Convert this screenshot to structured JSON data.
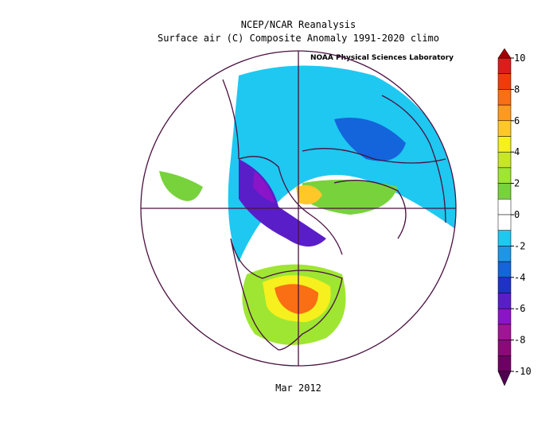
{
  "header": {
    "title": "NCEP/NCAR Reanalysis",
    "subtitle": "Surface air (C) Composite Anomaly 1991-2020 climo",
    "credit": "NOAA Physical Sciences Laboratory"
  },
  "footer": {
    "date": "Mar 2012"
  },
  "colorbar": {
    "lim": [
      -10,
      10
    ],
    "ticks": [
      10,
      8,
      6,
      4,
      2,
      0,
      -2,
      -4,
      -6,
      -8,
      -10
    ],
    "colors": [
      "#dd1c1c",
      "#f03c0a",
      "#fa6e14",
      "#ff9a1e",
      "#ffc828",
      "#f5f01e",
      "#c8e628",
      "#9ee632",
      "#78d23c",
      "#ffffff",
      "#ffffff",
      "#1ec8f0",
      "#1e96e6",
      "#1464dc",
      "#1e32c8",
      "#5a1ec8",
      "#8c14c8",
      "#a01496",
      "#8c0a78",
      "#6e0064"
    ],
    "over_color": "#a00000",
    "under_color": "#500050"
  }
}
